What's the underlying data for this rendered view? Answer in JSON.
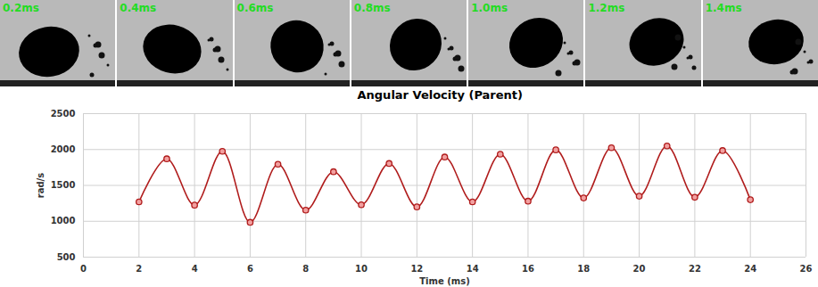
{
  "frames": [
    "0.2ms",
    "0.4ms",
    "0.6ms",
    "0.8ms",
    "1.0ms",
    "1.2ms",
    "1.4ms"
  ],
  "chart_data": {
    "type": "line",
    "title": "Angular Velocity (Parent)",
    "x_label": "Time (ms)",
    "y_label": "rad/s",
    "x": [
      2,
      3,
      4,
      5,
      6,
      7,
      8,
      9,
      10,
      11,
      12,
      13,
      14,
      15,
      16,
      17,
      18,
      19,
      20,
      21,
      22,
      23,
      24
    ],
    "values": [
      1270,
      1870,
      1225,
      1975,
      985,
      1795,
      1155,
      1690,
      1230,
      1805,
      1200,
      1895,
      1270,
      1935,
      1280,
      1995,
      1325,
      2025,
      1350,
      2050,
      1335,
      1985,
      1300
    ],
    "color": "#b01c1c",
    "marker": "circle",
    "line_style": "smooth",
    "xlim": [
      0,
      26
    ],
    "xticks": [
      0,
      2,
      4,
      6,
      8,
      10,
      12,
      14,
      16,
      18,
      20,
      22,
      24,
      26
    ],
    "ylim": [
      500,
      2500
    ],
    "yticks": [
      500,
      1000,
      1500,
      2000,
      2500
    ],
    "grid": true
  }
}
